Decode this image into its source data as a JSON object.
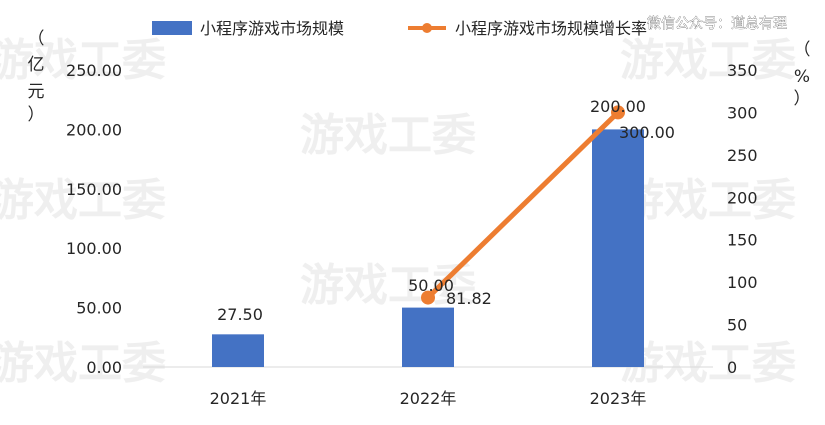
{
  "chart_data": {
    "type": "bar+line",
    "categories": [
      "2021年",
      "2022年",
      "2023年"
    ],
    "series": [
      {
        "name": "小程序游戏市场规模",
        "type": "bar",
        "axis": "left",
        "values": [
          27.5,
          50.0,
          200.0
        ],
        "labels": [
          "27.50",
          "50.00",
          "200.00"
        ],
        "color": "#4472c4"
      },
      {
        "name": "小程序游戏市场规模增长率",
        "type": "line",
        "axis": "right",
        "values": [
          null,
          81.82,
          300.0
        ],
        "labels": [
          "",
          "81.82",
          "300.00"
        ],
        "color": "#ed7d31"
      }
    ],
    "y_left": {
      "label_chars": [
        "（",
        "亿",
        "元",
        "）"
      ],
      "range": [
        0,
        250
      ],
      "ticks": [
        "0.00",
        "50.00",
        "100.00",
        "150.00",
        "200.00",
        "250.00"
      ]
    },
    "y_right": {
      "label_chars": [
        "（",
        "%",
        "）"
      ],
      "range": [
        0,
        350
      ],
      "ticks": [
        "0",
        "50",
        "100",
        "150",
        "200",
        "250",
        "300",
        "350"
      ]
    },
    "legend": "top-center",
    "grid": false
  },
  "watermark": "游戏工委",
  "credit": "微信公众号：道总有理"
}
